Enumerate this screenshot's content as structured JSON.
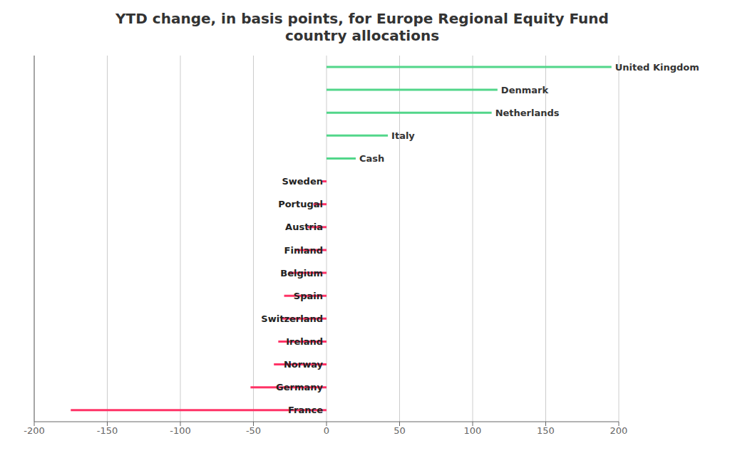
{
  "chart_data": {
    "type": "bar",
    "title": "YTD change, in basis points, for Europe Regional Equity Fund\ncountry allocations",
    "orientation": "horizontal",
    "categories": [
      "United Kingdom",
      "Denmark",
      "Netherlands",
      "Italy",
      "Cash",
      "Sweden",
      "Portugal",
      "Austria",
      "Finland",
      "Belgium",
      "Spain",
      "Switzerland",
      "Ireland",
      "Norway",
      "Germany",
      "France"
    ],
    "values": [
      195,
      117,
      113,
      42,
      20,
      -3,
      -9,
      -13,
      -21,
      -26,
      -29,
      -31,
      -33,
      -36,
      -52,
      -175
    ],
    "colors": [
      "#52d68a",
      "#52d68a",
      "#52d68a",
      "#52d68a",
      "#52d68a",
      "#ff3366",
      "#ff3366",
      "#ff3366",
      "#ff3366",
      "#ff3366",
      "#ff3366",
      "#ff3366",
      "#ff3366",
      "#ff3366",
      "#ff3366",
      "#ff3366"
    ],
    "xlim": [
      -200,
      200
    ],
    "xticks": [
      -200,
      -150,
      -100,
      -50,
      0,
      50,
      100,
      150,
      200
    ],
    "grid": true,
    "tick_labels": "x"
  }
}
